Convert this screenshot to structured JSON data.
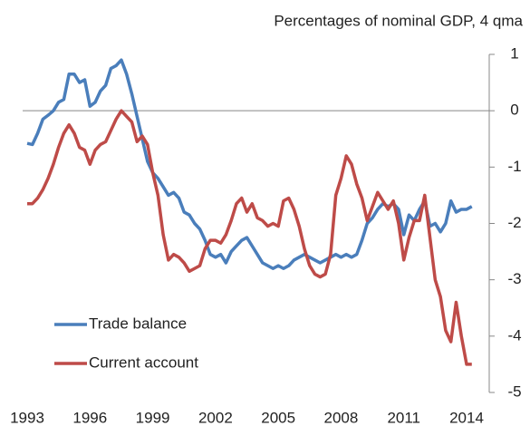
{
  "chart_data": {
    "type": "line",
    "title": "Percentages of nominal GDP, 4 qma",
    "x": [
      1993.0,
      1993.25,
      1993.5,
      1993.75,
      1994.0,
      1994.25,
      1994.5,
      1994.75,
      1995.0,
      1995.25,
      1995.5,
      1995.75,
      1996.0,
      1996.25,
      1996.5,
      1996.75,
      1997.0,
      1997.25,
      1997.5,
      1997.75,
      1998.0,
      1998.25,
      1998.5,
      1998.75,
      1999.0,
      1999.25,
      1999.5,
      1999.75,
      2000.0,
      2000.25,
      2000.5,
      2000.75,
      2001.0,
      2001.25,
      2001.5,
      2001.75,
      2002.0,
      2002.25,
      2002.5,
      2002.75,
      2003.0,
      2003.25,
      2003.5,
      2003.75,
      2004.0,
      2004.25,
      2004.5,
      2004.75,
      2005.0,
      2005.25,
      2005.5,
      2005.75,
      2006.0,
      2006.25,
      2006.5,
      2006.75,
      2007.0,
      2007.25,
      2007.5,
      2007.75,
      2008.0,
      2008.25,
      2008.5,
      2008.75,
      2009.0,
      2009.25,
      2009.5,
      2009.75,
      2010.0,
      2010.25,
      2010.5,
      2010.75,
      2011.0,
      2011.25,
      2011.5,
      2011.75,
      2012.0,
      2012.25,
      2012.5,
      2012.75,
      2013.0,
      2013.25,
      2013.5,
      2013.75,
      2014.0,
      2014.25
    ],
    "series": [
      {
        "name": "Trade balance",
        "color": "#4a7ebb",
        "values": [
          -0.58,
          -0.6,
          -0.4,
          -0.15,
          -0.08,
          0.0,
          0.15,
          0.2,
          0.65,
          0.65,
          0.5,
          0.55,
          0.08,
          0.15,
          0.35,
          0.45,
          0.75,
          0.8,
          0.9,
          0.65,
          0.3,
          -0.1,
          -0.5,
          -0.9,
          -1.1,
          -1.2,
          -1.35,
          -1.5,
          -1.45,
          -1.55,
          -1.8,
          -1.85,
          -2.0,
          -2.1,
          -2.3,
          -2.55,
          -2.6,
          -2.55,
          -2.7,
          -2.5,
          -2.4,
          -2.3,
          -2.25,
          -2.4,
          -2.55,
          -2.7,
          -2.75,
          -2.8,
          -2.75,
          -2.8,
          -2.75,
          -2.65,
          -2.6,
          -2.55,
          -2.6,
          -2.65,
          -2.7,
          -2.65,
          -2.6,
          -2.55,
          -2.6,
          -2.55,
          -2.6,
          -2.55,
          -2.3,
          -2.0,
          -1.9,
          -1.75,
          -1.65,
          -1.7,
          -1.65,
          -1.75,
          -2.2,
          -1.85,
          -1.95,
          -1.75,
          -1.6,
          -2.05,
          -2.0,
          -2.15,
          -2.0,
          -1.6,
          -1.8,
          -1.75,
          -1.75,
          -1.7
        ]
      },
      {
        "name": "Current account",
        "color": "#be4b48",
        "values": [
          -1.65,
          -1.65,
          -1.55,
          -1.4,
          -1.2,
          -0.95,
          -0.65,
          -0.4,
          -0.25,
          -0.4,
          -0.65,
          -0.7,
          -0.95,
          -0.7,
          -0.6,
          -0.55,
          -0.35,
          -0.15,
          0.0,
          -0.1,
          -0.2,
          -0.55,
          -0.45,
          -0.6,
          -1.1,
          -1.5,
          -2.2,
          -2.65,
          -2.55,
          -2.6,
          -2.7,
          -2.85,
          -2.8,
          -2.75,
          -2.45,
          -2.3,
          -2.3,
          -2.35,
          -2.2,
          -1.95,
          -1.65,
          -1.55,
          -1.8,
          -1.65,
          -1.9,
          -1.95,
          -2.05,
          -2.0,
          -2.05,
          -1.6,
          -1.55,
          -1.75,
          -2.05,
          -2.45,
          -2.75,
          -2.9,
          -2.95,
          -2.9,
          -2.55,
          -1.5,
          -1.2,
          -0.8,
          -0.95,
          -1.3,
          -1.55,
          -1.95,
          -1.7,
          -1.45,
          -1.6,
          -1.75,
          -1.6,
          -2.0,
          -2.65,
          -2.25,
          -1.95,
          -1.95,
          -1.5,
          -2.25,
          -3.0,
          -3.3,
          -3.9,
          -4.1,
          -3.4,
          -4.0,
          -4.5,
          -4.5
        ]
      }
    ],
    "xlim": [
      1992.8,
      2015.0
    ],
    "xticks": [
      1993,
      1996,
      1999,
      2002,
      2005,
      2008,
      2011,
      2014
    ],
    "ylim": [
      -5,
      1
    ],
    "yticks": [
      -5,
      -4,
      -3,
      -2,
      -1,
      0,
      1
    ],
    "legend": "lower left"
  }
}
